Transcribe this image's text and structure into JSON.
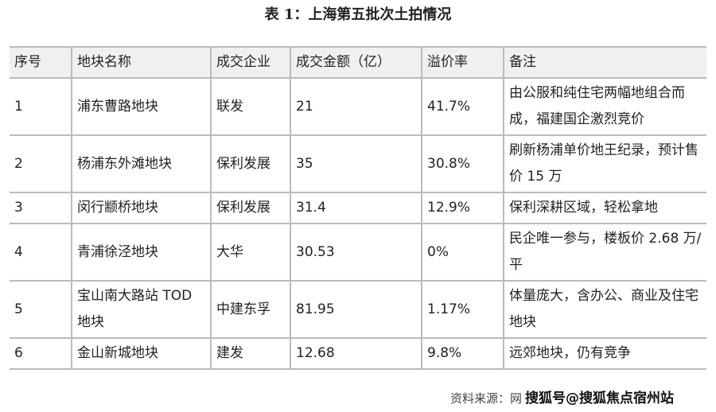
{
  "title": "表 1：上海第五批次土拍情况",
  "headers": [
    "序号",
    "地块名称",
    "成交企业",
    "成交金额（亿）",
    "溢价率",
    "备注"
  ],
  "rows": [
    [
      "1",
      "浦东曹路地块",
      "联发",
      "21",
      "41.7%",
      "由公服和纯住宅两幅地组合而成，福建国企激烈竞价"
    ],
    [
      "2",
      "杨浦东外滩地块",
      "保利发展",
      "35",
      "30.8%",
      "刷新杨浦单价地王纪录，预计售价 15 万"
    ],
    [
      "3",
      "闵行颛桥地块",
      "保利发展",
      "31.4",
      "12.9%",
      "保利深耕区域，轻松拿地"
    ],
    [
      "4",
      "青浦徐泾地块",
      "大华",
      "30.53",
      "0%",
      "民企唯一参与，楼板价 2.68 万/平"
    ],
    [
      "5",
      "宝山南大路站 TOD 地块",
      "中建东孚",
      "81.95",
      "1.17%",
      "体量庞大，含办公、商业及住宅地块"
    ],
    [
      "6",
      "金山新城地块",
      "建发",
      "12.68",
      "9.8%",
      "远郊地块，仍有竞争"
    ]
  ],
  "footer": {
    "source": "资料来源：网",
    "watermark": "搜狐号@搜狐焦点宿州站"
  }
}
